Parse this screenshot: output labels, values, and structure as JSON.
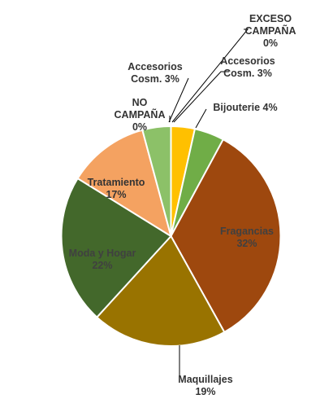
{
  "chart_data": {
    "type": "pie",
    "title": "",
    "slices": [
      {
        "name": "Accesorios Cosm.",
        "value": 3,
        "label_lines": [
          "Accesorios",
          "Cosm. 3%"
        ],
        "color": "#ffc000",
        "text_color": "#333333"
      },
      {
        "name": "Bijouterie",
        "value": 4,
        "label_lines": [
          "Bijouterie 4%"
        ],
        "color": "#70ad47",
        "text_color": "#333333"
      },
      {
        "name": "Fragancias",
        "value": 32,
        "label_lines": [
          "Fragancias",
          "32%"
        ],
        "color": "#9e480e",
        "text_color": "#404040"
      },
      {
        "name": "Maquillajes",
        "value": 19,
        "label_lines": [
          "Maquillajes",
          "19%"
        ],
        "color": "#997300",
        "text_color": "#333333"
      },
      {
        "name": "Moda y Hogar",
        "value": 22,
        "label_lines": [
          "Moda y Hogar",
          "22%"
        ],
        "color": "#43682b",
        "text_color": "#404040"
      },
      {
        "name": "Tratamiento",
        "value": 17,
        "label_lines": [
          "Tratamiento",
          "17%"
        ],
        "color": "#f4a261",
        "text_color": "#333333"
      },
      {
        "name": "NO CAMPAÑA",
        "value": 0,
        "label_lines": [
          "NO",
          "CAMPAÑA",
          "0%"
        ],
        "color": "#ffffff",
        "text_color": "#333333"
      },
      {
        "name": "Accesorios Cosm.",
        "value": 3,
        "label_lines": [
          "Accesorios",
          "Cosm. 3%"
        ],
        "color": "#8cc168",
        "text_color": "#333333"
      },
      {
        "name": "EXCESO CAMPAÑA",
        "value": 0,
        "label_lines": [
          "EXCESO",
          "CAMPAÑA",
          "0%"
        ],
        "color": "#ffffff",
        "text_color": "#333333"
      }
    ]
  }
}
